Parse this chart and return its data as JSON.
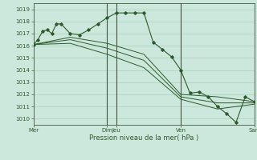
{
  "xlabel": "Pression niveau de la mer( hPa )",
  "bg_color": "#cce8dc",
  "grid_color": "#99ccb3",
  "line_color": "#2d5a2d",
  "ylim": [
    1009.5,
    1019.5
  ],
  "xlim": [
    0,
    288
  ],
  "yticks": [
    1010,
    1011,
    1012,
    1013,
    1014,
    1015,
    1016,
    1017,
    1018,
    1019
  ],
  "xtick_positions": [
    0,
    96,
    108,
    192,
    288
  ],
  "xtick_labels": [
    "Mer",
    "Dim",
    "Jeu",
    "Ven",
    "Sam"
  ],
  "vlines": [
    96,
    108,
    192,
    288
  ],
  "series1": {
    "x": [
      0,
      6,
      12,
      18,
      24,
      30,
      36,
      48,
      60,
      72,
      84,
      96,
      108,
      120,
      132,
      144,
      156,
      168,
      180,
      192,
      204,
      216,
      228,
      240,
      252,
      264,
      276,
      288
    ],
    "y": [
      1016.1,
      1016.5,
      1017.2,
      1017.3,
      1017.0,
      1017.8,
      1017.8,
      1017.0,
      1016.9,
      1017.3,
      1017.8,
      1018.3,
      1018.7,
      1018.7,
      1018.7,
      1018.7,
      1016.3,
      1015.7,
      1015.1,
      1014.0,
      1012.1,
      1012.2,
      1011.8,
      1011.0,
      1010.4,
      1009.7,
      1011.8,
      1011.4
    ]
  },
  "series2": {
    "x": [
      0,
      48,
      96,
      144,
      192,
      240,
      288
    ],
    "y": [
      1016.1,
      1016.7,
      1016.2,
      1015.3,
      1012.0,
      1011.8,
      1011.4
    ]
  },
  "series3": {
    "x": [
      0,
      48,
      96,
      144,
      192,
      240,
      288
    ],
    "y": [
      1016.1,
      1016.5,
      1015.8,
      1014.8,
      1011.8,
      1011.3,
      1011.3
    ]
  },
  "series4": {
    "x": [
      0,
      48,
      96,
      144,
      192,
      240,
      288
    ],
    "y": [
      1016.1,
      1016.2,
      1015.3,
      1014.2,
      1011.6,
      1010.8,
      1011.2
    ]
  }
}
